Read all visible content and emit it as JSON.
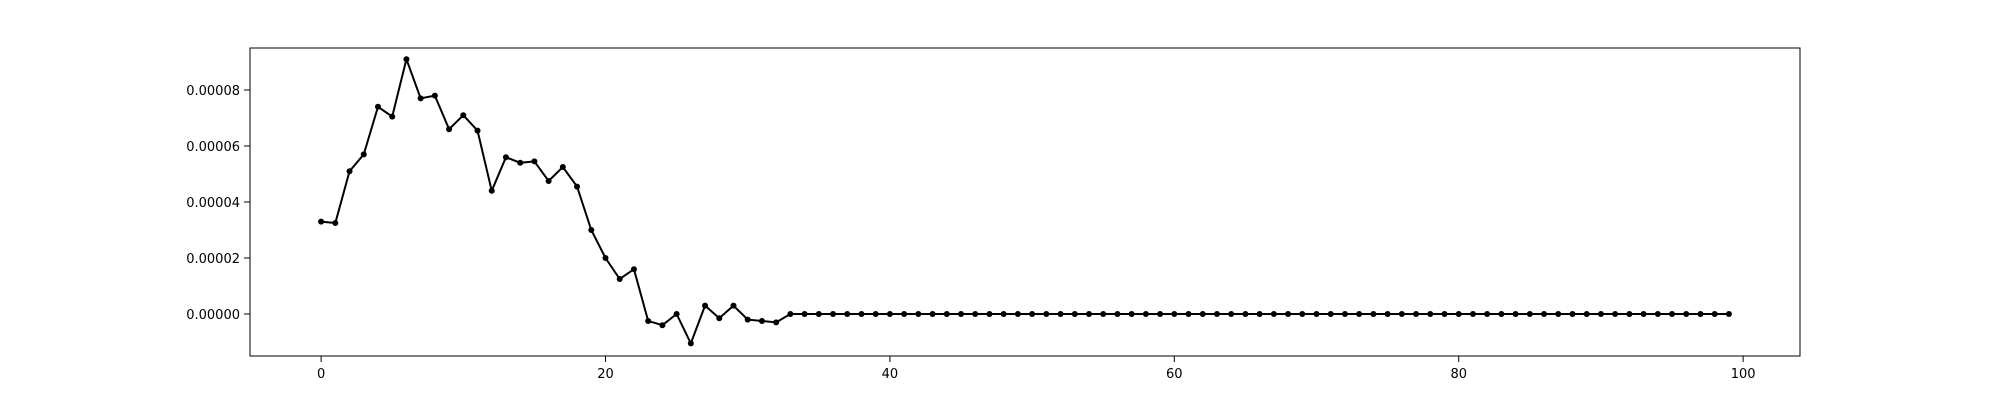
{
  "chart_data": {
    "type": "line",
    "title": "",
    "xlabel": "",
    "ylabel": "",
    "xlim": [
      -5,
      104
    ],
    "ylim": [
      -1.5e-05,
      9.5e-05
    ],
    "xticks": [
      0,
      20,
      40,
      60,
      80,
      100
    ],
    "xtick_labels": [
      "0",
      "20",
      "40",
      "60",
      "80",
      "100"
    ],
    "yticks": [
      0,
      2e-05,
      4e-05,
      6e-05,
      8e-05
    ],
    "ytick_labels": [
      "0.00000",
      "0.00002",
      "0.00004",
      "0.00006",
      "0.00008"
    ],
    "grid": false,
    "series": [
      {
        "color": "#000000",
        "marker": "circle",
        "x": [
          0,
          1,
          2,
          3,
          4,
          5,
          6,
          7,
          8,
          9,
          10,
          11,
          12,
          13,
          14,
          15,
          16,
          17,
          18,
          19,
          20,
          21,
          22,
          23,
          24,
          25,
          26,
          27,
          28,
          29,
          30,
          31,
          32,
          33,
          34,
          35,
          36,
          37,
          38,
          39,
          40,
          41,
          42,
          43,
          44,
          45,
          46,
          47,
          48,
          49,
          50,
          51,
          52,
          53,
          54,
          55,
          56,
          57,
          58,
          59,
          60,
          61,
          62,
          63,
          64,
          65,
          66,
          67,
          68,
          69,
          70,
          71,
          72,
          73,
          74,
          75,
          76,
          77,
          78,
          79,
          80,
          81,
          82,
          83,
          84,
          85,
          86,
          87,
          88,
          89,
          90,
          91,
          92,
          93,
          94,
          95,
          96,
          97,
          98,
          99
        ],
        "y": [
          3.3e-05,
          3.25e-05,
          5.1e-05,
          5.7e-05,
          7.4e-05,
          7.05e-05,
          9.1e-05,
          7.7e-05,
          7.8e-05,
          6.6e-05,
          7.1e-05,
          6.55e-05,
          4.4e-05,
          5.6e-05,
          5.4e-05,
          5.45e-05,
          4.75e-05,
          5.25e-05,
          4.55e-05,
          3e-05,
          2e-05,
          1.25e-05,
          1.6e-05,
          -2.5e-06,
          -4e-06,
          0,
          -1.05e-05,
          3e-06,
          -1.5e-06,
          3e-06,
          -2e-06,
          -2.5e-06,
          -3e-06,
          0,
          0,
          0,
          0,
          0,
          0,
          0,
          0,
          0,
          0,
          0,
          0,
          0,
          0,
          0,
          0,
          0,
          0,
          0,
          0,
          0,
          0,
          0,
          0,
          0,
          0,
          0,
          0,
          0,
          0,
          0,
          0,
          0,
          0,
          0,
          0,
          0,
          0,
          0,
          0,
          0,
          0,
          0,
          0,
          0,
          0,
          0,
          0,
          0,
          0,
          0,
          0,
          0,
          0,
          0,
          0,
          0,
          0,
          0,
          0,
          0,
          0,
          0,
          0,
          0,
          0,
          0
        ]
      }
    ]
  }
}
